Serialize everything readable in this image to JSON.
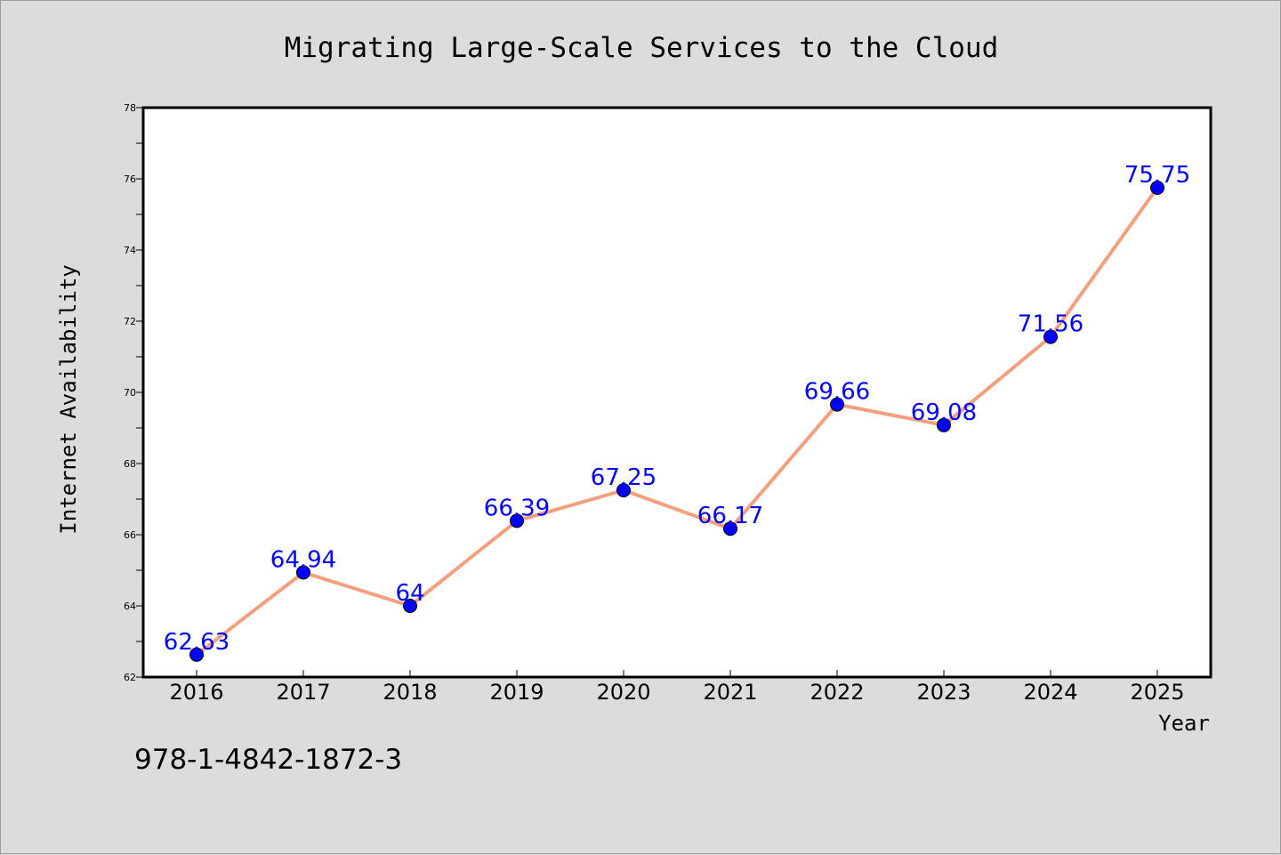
{
  "chart_data": {
    "type": "line",
    "title": "Migrating Large-Scale Services to the Cloud",
    "xlabel": "Year",
    "ylabel": "Internet Availability",
    "categories": [
      "2016",
      "2017",
      "2018",
      "2019",
      "2020",
      "2021",
      "2022",
      "2023",
      "2024",
      "2025"
    ],
    "series": [
      {
        "values": [
          62.63,
          64.94,
          64,
          66.39,
          67.25,
          66.17,
          69.66,
          69.08,
          71.56,
          75.75
        ],
        "data_labels": [
          "62.63",
          "64.94",
          "64",
          "66.39",
          "67.25",
          "66.17",
          "69.66",
          "69.08",
          "71.56",
          "75.75"
        ],
        "line_color": "#f4a07e",
        "marker_color": "#0000ff"
      }
    ],
    "ylim": [
      62,
      78
    ],
    "yticks": [
      "62",
      "64",
      "66",
      "68",
      "70",
      "72",
      "74",
      "76",
      "78"
    ],
    "grid": false,
    "legend": "none"
  },
  "annotation": "978-1-4842-1872-3",
  "colors": {
    "background": "#dcdcdc",
    "plot_background": "#ffffff",
    "line": "#f4a07e",
    "marker": "#0000ff",
    "data_label": "#0000ff"
  }
}
